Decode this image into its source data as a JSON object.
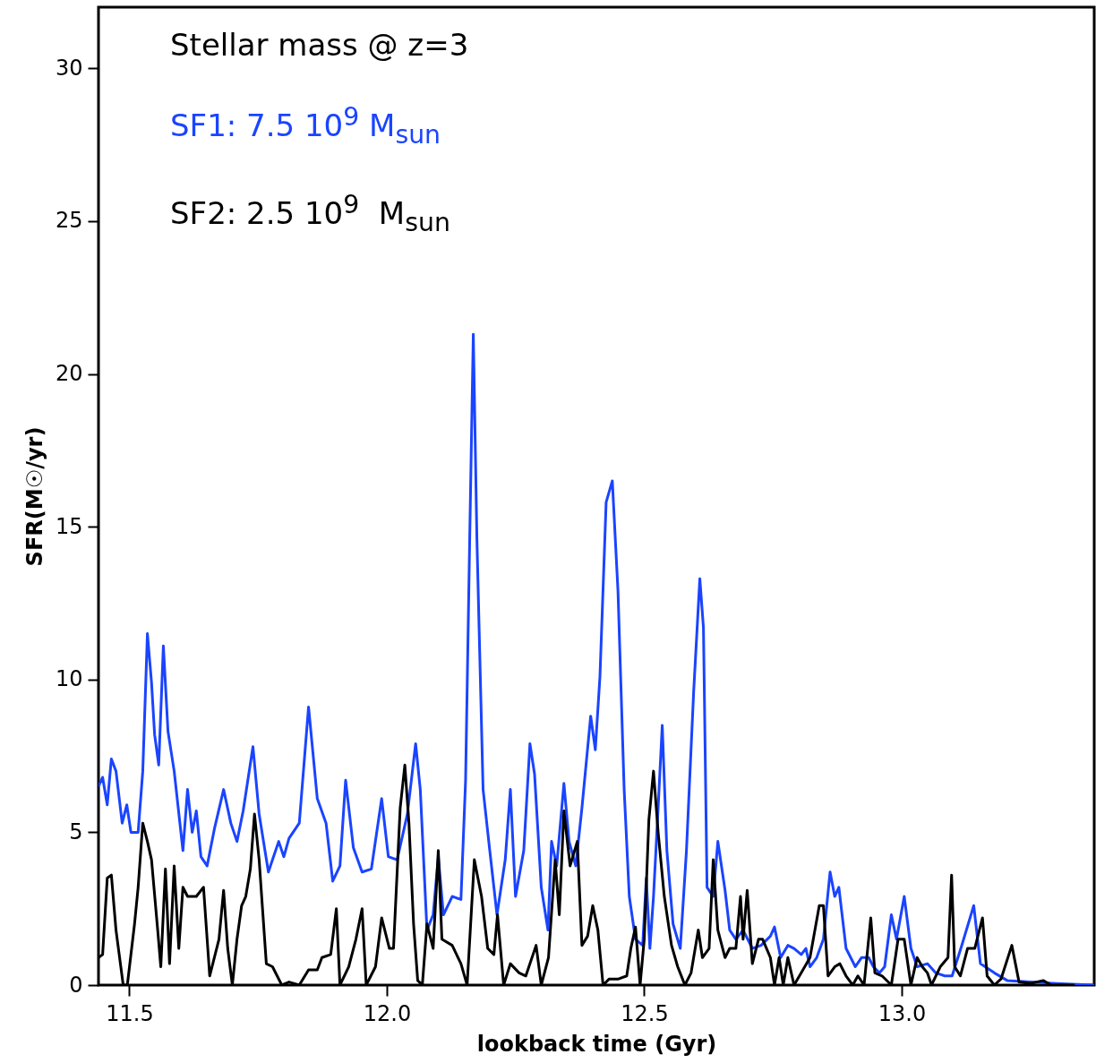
{
  "chart_data": {
    "type": "line",
    "xlabel": "lookback time (Gyr)",
    "ylabel": "SFR(M☉/yr)",
    "annotations": [
      "Stellar mass @ z=3"
    ],
    "xlim": [
      11.44,
      13.374
    ],
    "ylim": [
      0,
      32
    ],
    "xticks": [
      11.5,
      {
        "value": 12,
        "label": "12.0"
      },
      12.5,
      {
        "value": 13,
        "label": "13.0"
      }
    ],
    "yticks": [
      0,
      5,
      10,
      15,
      20,
      25,
      30
    ],
    "grid": false,
    "legend": "top left",
    "line_style": "solid",
    "series": [
      {
        "name": "SF1: 7.5 10$^{9}$ M$_{sun}$",
        "color": "#1a44ff",
        "x": [
          11.44,
          11.448,
          11.457,
          11.465,
          11.474,
          11.486,
          11.495,
          11.503,
          11.517,
          11.526,
          11.535,
          11.543,
          11.549,
          11.557,
          11.566,
          11.575,
          11.587,
          11.604,
          11.613,
          11.622,
          11.63,
          11.639,
          11.651,
          11.665,
          11.683,
          11.697,
          11.709,
          11.721,
          11.74,
          11.752,
          11.77,
          11.778,
          11.79,
          11.8,
          11.81,
          11.83,
          11.848,
          11.865,
          11.882,
          11.895,
          11.909,
          11.92,
          11.935,
          11.952,
          11.97,
          11.99,
          12.003,
          12.02,
          12.04,
          12.056,
          12.065,
          12.078,
          12.09,
          12.1,
          12.11,
          12.127,
          12.144,
          12.153,
          12.161,
          12.168,
          12.175,
          12.187,
          12.2,
          12.214,
          12.23,
          12.24,
          12.25,
          12.266,
          12.278,
          12.287,
          12.3,
          12.313,
          12.32,
          12.33,
          12.344,
          12.354,
          12.367,
          12.379,
          12.396,
          12.405,
          12.414,
          12.426,
          12.438,
          12.449,
          12.461,
          12.471,
          12.483,
          12.497,
          12.504,
          12.511,
          12.518,
          12.527,
          12.535,
          12.544,
          12.556,
          12.57,
          12.582,
          12.596,
          12.608,
          12.615,
          12.622,
          12.634,
          12.643,
          12.657,
          12.666,
          12.678,
          12.692,
          12.71,
          12.727,
          12.745,
          12.753,
          12.765,
          12.779,
          12.791,
          12.805,
          12.814,
          12.822,
          12.835,
          12.848,
          12.861,
          12.87,
          12.878,
          12.892,
          12.91,
          12.922,
          12.936,
          12.945,
          12.957,
          12.967,
          12.98,
          12.99,
          13.005,
          13.018,
          13.03,
          13.05,
          13.066,
          13.084,
          13.098,
          13.115,
          13.14,
          13.153,
          13.18,
          13.205,
          13.25,
          13.3,
          13.374
        ],
        "values": [
          6.5,
          6.8,
          5.9,
          7.4,
          7.0,
          5.3,
          5.9,
          5.0,
          5.0,
          7.0,
          11.5,
          9.9,
          8.2,
          7.2,
          11.1,
          8.3,
          7.0,
          4.4,
          6.4,
          5.0,
          5.7,
          4.2,
          3.9,
          5.1,
          6.4,
          5.3,
          4.7,
          5.7,
          7.8,
          5.6,
          3.7,
          4.1,
          4.7,
          4.2,
          4.8,
          5.3,
          9.1,
          6.1,
          5.3,
          3.4,
          3.9,
          6.7,
          4.5,
          3.7,
          3.8,
          6.1,
          4.2,
          4.1,
          5.6,
          7.9,
          6.4,
          1.8,
          2.3,
          4.2,
          2.3,
          2.9,
          2.8,
          6.7,
          14.6,
          21.3,
          14.6,
          6.4,
          4.4,
          2.3,
          4.1,
          6.4,
          2.9,
          4.4,
          7.9,
          6.9,
          3.2,
          1.8,
          4.7,
          3.9,
          6.6,
          4.7,
          3.9,
          5.8,
          8.8,
          7.7,
          10.1,
          15.8,
          16.5,
          12.9,
          6.4,
          2.9,
          1.5,
          1.3,
          3.5,
          1.2,
          2.9,
          5.8,
          8.5,
          4.4,
          2.0,
          1.2,
          4.4,
          9.6,
          13.3,
          11.7,
          3.2,
          2.9,
          4.7,
          3.1,
          1.8,
          1.5,
          1.8,
          1.2,
          1.3,
          1.6,
          1.9,
          0.9,
          1.3,
          1.2,
          1.0,
          1.2,
          0.6,
          0.9,
          1.5,
          3.7,
          2.9,
          3.2,
          1.2,
          0.6,
          0.9,
          0.9,
          0.6,
          0.4,
          0.6,
          2.3,
          1.5,
          2.9,
          1.2,
          0.6,
          0.7,
          0.4,
          0.3,
          0.3,
          1.2,
          2.6,
          0.7,
          0.4,
          0.15,
          0.1,
          0.05,
          0
        ]
      },
      {
        "name": "SF2: 2.5 10$^{9}$  M$_{sun}$",
        "color": "#000000",
        "x": [
          11.44,
          11.448,
          11.457,
          11.465,
          11.474,
          11.488,
          11.496,
          11.51,
          11.517,
          11.526,
          11.535,
          11.543,
          11.555,
          11.561,
          11.57,
          11.578,
          11.587,
          11.596,
          11.604,
          11.613,
          11.63,
          11.644,
          11.656,
          11.674,
          11.683,
          11.691,
          11.7,
          11.709,
          11.718,
          11.726,
          11.735,
          11.743,
          11.752,
          11.766,
          11.778,
          11.796,
          11.81,
          11.83,
          11.848,
          11.865,
          11.874,
          11.891,
          11.902,
          11.909,
          11.926,
          11.94,
          11.952,
          11.96,
          11.978,
          11.99,
          12.005,
          12.013,
          12.026,
          12.035,
          12.043,
          12.052,
          12.06,
          12.069,
          12.078,
          12.09,
          12.1,
          12.107,
          12.127,
          12.144,
          12.156,
          12.17,
          12.184,
          12.196,
          12.208,
          12.215,
          12.227,
          12.24,
          12.257,
          12.27,
          12.29,
          12.3,
          12.314,
          12.327,
          12.335,
          12.344,
          12.356,
          12.37,
          12.379,
          12.39,
          12.4,
          12.41,
          12.42,
          12.432,
          12.45,
          12.466,
          12.474,
          12.483,
          12.492,
          12.5,
          12.509,
          12.518,
          12.527,
          12.539,
          12.553,
          12.565,
          12.579,
          12.591,
          12.605,
          12.613,
          12.626,
          12.634,
          12.643,
          12.657,
          12.666,
          12.678,
          12.687,
          12.692,
          12.7,
          12.71,
          12.722,
          12.73,
          12.745,
          12.753,
          12.762,
          12.77,
          12.779,
          12.791,
          12.805,
          12.822,
          12.84,
          12.848,
          12.857,
          12.87,
          12.88,
          12.892,
          12.905,
          12.915,
          12.927,
          12.94,
          12.948,
          12.962,
          12.98,
          12.993,
          13.005,
          13.018,
          13.03,
          13.04,
          13.05,
          13.058,
          13.075,
          13.09,
          13.097,
          13.103,
          13.114,
          13.128,
          13.142,
          13.157,
          13.166,
          13.18,
          13.193,
          13.214,
          13.228,
          13.25,
          13.275,
          13.29,
          13.336
        ],
        "values": [
          0.9,
          1.0,
          3.5,
          3.6,
          1.8,
          0,
          0,
          2.0,
          3.2,
          5.3,
          4.7,
          4.1,
          1.8,
          0.6,
          3.8,
          0.7,
          3.9,
          1.2,
          3.2,
          2.9,
          2.9,
          3.2,
          0.3,
          1.5,
          3.1,
          1.2,
          0,
          1.5,
          2.6,
          2.9,
          3.8,
          5.6,
          4.1,
          0.7,
          0.6,
          0,
          0.1,
          0,
          0.5,
          0.5,
          0.9,
          1.0,
          2.5,
          0,
          0.6,
          1.5,
          2.5,
          0,
          0.6,
          2.2,
          1.2,
          1.2,
          5.8,
          7.2,
          5.3,
          2.0,
          0.15,
          0,
          2.0,
          1.2,
          4.4,
          1.5,
          1.3,
          0.7,
          0,
          4.1,
          2.9,
          1.2,
          1.0,
          2.3,
          0,
          0.7,
          0.4,
          0.3,
          1.3,
          0,
          0.9,
          4.1,
          2.3,
          5.7,
          3.9,
          4.7,
          1.3,
          1.6,
          2.6,
          1.8,
          0,
          0.2,
          0.2,
          0.3,
          1.2,
          1.9,
          0,
          1.5,
          5.4,
          7.0,
          5.0,
          2.9,
          1.3,
          0.6,
          0,
          0.4,
          1.8,
          0.9,
          1.2,
          4.1,
          1.8,
          0.9,
          1.2,
          1.2,
          2.9,
          1.5,
          3.1,
          0.7,
          1.5,
          1.5,
          0.9,
          0,
          0.9,
          0,
          0.9,
          0,
          0.4,
          0.9,
          2.6,
          2.6,
          0.3,
          0.6,
          0.7,
          0.3,
          0,
          0.3,
          0,
          2.2,
          0.4,
          0.3,
          0,
          1.5,
          1.5,
          0,
          0.9,
          0.6,
          0.4,
          0,
          0.6,
          0.9,
          3.6,
          0.6,
          0.3,
          1.2,
          1.2,
          2.2,
          0.3,
          0,
          0.2,
          1.3,
          0.1,
          0.05,
          0.15,
          0,
          0
        ]
      }
    ]
  }
}
